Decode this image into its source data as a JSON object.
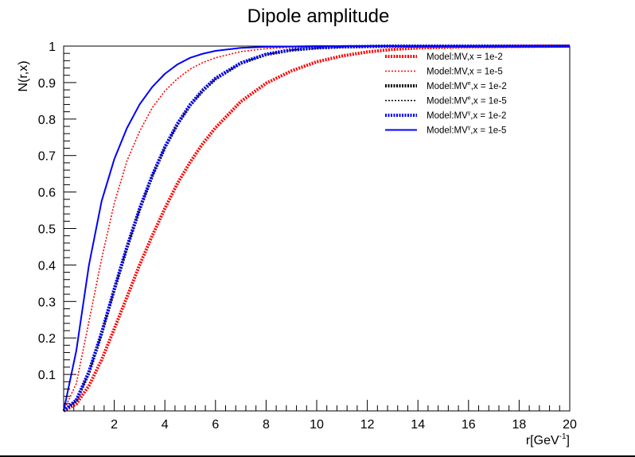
{
  "chart_data": {
    "type": "line",
    "title": "Dipole amplitude",
    "xlabel_base": "r[GeV",
    "xlabel_sup": "-1",
    "xlabel_close": "]",
    "ylabel": "N(r,x)",
    "xlim": [
      0,
      20
    ],
    "ylim": [
      0,
      1
    ],
    "xticks": [
      2,
      4,
      6,
      8,
      10,
      12,
      14,
      16,
      18,
      20
    ],
    "xtick_labels": [
      "2",
      "4",
      "6",
      "8",
      "10",
      "12",
      "14",
      "16",
      "18",
      "20"
    ],
    "yticks": [
      0.1,
      0.2,
      0.3,
      0.4,
      0.5,
      0.6,
      0.7,
      0.8,
      0.9,
      1
    ],
    "ytick_labels": [
      "0.1",
      "0.2",
      "0.3",
      "0.4",
      "0.5",
      "0.6",
      "0.7",
      "0.8",
      "0.9",
      "1"
    ],
    "grid": false,
    "legend_position": "top-right",
    "x": [
      0,
      0.5,
      1,
      1.5,
      2,
      2.5,
      3,
      3.5,
      4,
      4.5,
      5,
      5.5,
      6,
      7,
      8,
      9,
      10,
      11,
      12,
      13,
      14,
      16,
      18,
      20
    ],
    "series": [
      {
        "name_base": "Model:MV,x = 1e-2",
        "name_sup": "",
        "color": "#ff0000",
        "style": "dotted-thick",
        "values": [
          0,
          0.019,
          0.069,
          0.14,
          0.225,
          0.312,
          0.4,
          0.48,
          0.555,
          0.624,
          0.682,
          0.733,
          0.776,
          0.848,
          0.898,
          0.932,
          0.957,
          0.973,
          0.984,
          0.991,
          0.995,
          0.998,
          0.999,
          1.0
        ]
      },
      {
        "name_base": "Model:MV,x = 1e-5",
        "name_sup": "",
        "color": "#ff0000",
        "style": "dotted-thin",
        "values": [
          0,
          0.075,
          0.245,
          0.417,
          0.569,
          0.685,
          0.766,
          0.831,
          0.877,
          0.911,
          0.937,
          0.955,
          0.968,
          0.985,
          0.993,
          0.997,
          0.998,
          0.999,
          1.0,
          1.0,
          1.0,
          1.0,
          1.0,
          1.0
        ]
      },
      {
        "name_base": "Model:MV",
        "name_sup": "e",
        "name_tail": ",x = 1e-2",
        "color": "#000000",
        "style": "dotted-thick",
        "values": [
          0,
          0.028,
          0.105,
          0.212,
          0.332,
          0.447,
          0.552,
          0.644,
          0.722,
          0.786,
          0.838,
          0.878,
          0.91,
          0.953,
          0.977,
          0.989,
          0.995,
          0.998,
          0.999,
          1.0,
          1.0,
          1.0,
          1.0,
          1.0
        ]
      },
      {
        "name_base": "Model:MV",
        "name_sup": "e",
        "name_tail": ",x = 1e-5",
        "color": "#000000",
        "style": "dotted-thin",
        "values": [
          0,
          0.028,
          0.105,
          0.212,
          0.332,
          0.447,
          0.552,
          0.644,
          0.722,
          0.786,
          0.838,
          0.878,
          0.91,
          0.953,
          0.977,
          0.989,
          0.995,
          0.998,
          0.999,
          1.0,
          1.0,
          1.0,
          1.0,
          1.0
        ]
      },
      {
        "name_base": "Model:MV",
        "name_sup": "γ",
        "name_tail": ",x = 1e-2",
        "color": "#0000ff",
        "style": "dotted-thick",
        "values": [
          0,
          0.03,
          0.108,
          0.215,
          0.335,
          0.45,
          0.555,
          0.646,
          0.724,
          0.788,
          0.84,
          0.88,
          0.912,
          0.954,
          0.978,
          0.99,
          0.995,
          0.998,
          0.999,
          1.0,
          1.0,
          1.0,
          1.0,
          1.0
        ]
      },
      {
        "name_base": "Model:MV",
        "name_sup": "γ",
        "name_tail": ",x = 1e-5",
        "color": "#0000ff",
        "style": "solid",
        "values": [
          0,
          0.165,
          0.4,
          0.575,
          0.69,
          0.775,
          0.84,
          0.888,
          0.924,
          0.95,
          0.968,
          0.979,
          0.987,
          0.995,
          0.998,
          0.999,
          1.0,
          1.0,
          1.0,
          1.0,
          1.0,
          1.0,
          1.0,
          1.0
        ]
      }
    ]
  }
}
